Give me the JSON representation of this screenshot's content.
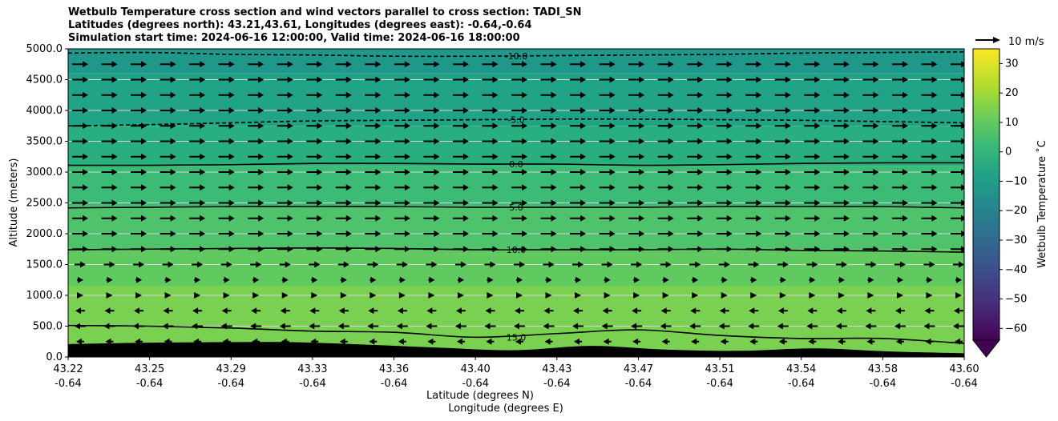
{
  "chart_data": {
    "type": "heatmap",
    "title_lines": [
      "Wetbulb Temperature cross section and wind vectors parallel to cross section: TADI_SN",
      "Latitudes (degrees north): 43.21,43.61, Longitudes (degrees east): -0.64,-0.64",
      "Simulation start time: 2024-06-16 12:00:00, Valid time: 2024-06-16 18:00:00"
    ],
    "xlabel_lines": [
      "Latitude (degrees N)",
      "Longitude (degrees E)"
    ],
    "ylabel": "Altitude (meters)",
    "x_tick_lat": [
      "43.22",
      "43.25",
      "43.29",
      "43.33",
      "43.36",
      "43.40",
      "43.43",
      "43.47",
      "43.51",
      "43.54",
      "43.58",
      "43.60"
    ],
    "x_tick_lon": [
      "-0.64",
      "-0.64",
      "-0.64",
      "-0.64",
      "-0.64",
      "-0.64",
      "-0.64",
      "-0.64",
      "-0.64",
      "-0.64",
      "-0.64",
      "-0.64"
    ],
    "y_ticks": [
      "0.0",
      "500.0",
      "1000.0",
      "1500.0",
      "2000.0",
      "2500.0",
      "3000.0",
      "3500.0",
      "4000.0",
      "4500.0",
      "5000.0"
    ],
    "ylim": [
      0,
      5000
    ],
    "grid": "horizontal",
    "colorbar": {
      "label": "Wetbulb Temperature ˚C",
      "ticks": [
        "30",
        "20",
        "10",
        "0",
        "−10",
        "−20",
        "−30",
        "−40",
        "−50",
        "−60"
      ],
      "range": [
        -64,
        35
      ],
      "extend": "min",
      "colormap": "viridis"
    },
    "quiver_key": "10 m/s",
    "contours": [
      {
        "label": "-10.0",
        "style": "dashed",
        "altitude_m": [
          4930,
          4940,
          4910,
          4900,
          4880,
          4880,
          4890,
          4900,
          4910,
          4930,
          4940,
          4950
        ]
      },
      {
        "label": "-5.0",
        "style": "dashed",
        "altitude_m": [
          3750,
          3770,
          3800,
          3830,
          3840,
          3850,
          3860,
          3860,
          3850,
          3840,
          3820,
          3800
        ]
      },
      {
        "label": "0.0",
        "style": "solid",
        "altitude_m": [
          3110,
          3110,
          3120,
          3140,
          3140,
          3130,
          3130,
          3110,
          3120,
          3140,
          3150,
          3150
        ]
      },
      {
        "label": "5.0",
        "style": "solid",
        "altitude_m": [
          2420,
          2430,
          2440,
          2440,
          2440,
          2430,
          2430,
          2430,
          2440,
          2440,
          2440,
          2420
        ]
      },
      {
        "label": "10.0",
        "style": "solid",
        "altitude_m": [
          1740,
          1750,
          1760,
          1770,
          1760,
          1740,
          1740,
          1740,
          1750,
          1730,
          1720,
          1700
        ]
      },
      {
        "label": "15.0",
        "style": "solid",
        "altitude_m": [
          510,
          500,
          470,
          420,
          400,
          320,
          380,
          440,
          350,
          300,
          300,
          220
        ]
      }
    ],
    "terrain_altitude_m": [
      210,
      230,
      240,
      240,
      200,
      150,
      110,
      180,
      120,
      100,
      140,
      90,
      60
    ],
    "fill_bands": [
      {
        "min_m": 4600,
        "max_m": 5000,
        "color": "#1f988b"
      },
      {
        "min_m": 3750,
        "max_m": 4600,
        "color": "#20a386"
      },
      {
        "min_m": 3100,
        "max_m": 3750,
        "color": "#29af7f"
      },
      {
        "min_m": 2450,
        "max_m": 3100,
        "color": "#3bbb75"
      },
      {
        "min_m": 1750,
        "max_m": 2450,
        "color": "#4ec36b"
      },
      {
        "min_m": 1150,
        "max_m": 1750,
        "color": "#60ca60"
      },
      {
        "min_m": 0,
        "max_m": 1150,
        "color": "#7ad151"
      }
    ],
    "wind_levels": [
      {
        "altitude_m": 4750,
        "speed_ms": 10
      },
      {
        "altitude_m": 4500,
        "speed_ms": 10
      },
      {
        "altitude_m": 4250,
        "speed_ms": 10
      },
      {
        "altitude_m": 4000,
        "speed_ms": 10
      },
      {
        "altitude_m": 3750,
        "speed_ms": 10
      },
      {
        "altitude_m": 3500,
        "speed_ms": 10
      },
      {
        "altitude_m": 3250,
        "speed_ms": 10
      },
      {
        "altitude_m": 3000,
        "speed_ms": 10
      },
      {
        "altitude_m": 2750,
        "speed_ms": 10
      },
      {
        "altitude_m": 2500,
        "speed_ms": 10
      },
      {
        "altitude_m": 2250,
        "speed_ms": 10
      },
      {
        "altitude_m": 2000,
        "speed_ms": 10
      },
      {
        "altitude_m": 1750,
        "speed_ms": 10
      },
      {
        "altitude_m": 1500,
        "speed_ms": 7
      },
      {
        "altitude_m": 1250,
        "speed_ms": 4
      },
      {
        "altitude_m": 1000,
        "speed_ms": 0
      },
      {
        "altitude_m": 750,
        "speed_ms": -6
      },
      {
        "altitude_m": 500,
        "speed_ms": -7
      },
      {
        "altitude_m": 250,
        "speed_ms": -5
      }
    ]
  }
}
